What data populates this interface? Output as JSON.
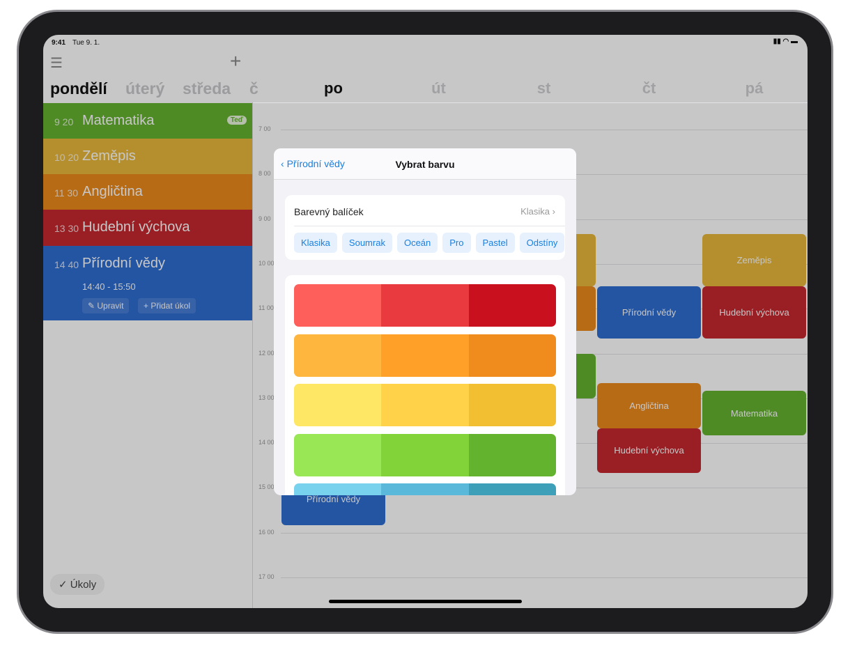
{
  "status": {
    "time": "9:41",
    "date": "Tue 9. 1."
  },
  "sidebar": {
    "days": [
      "pondělí",
      "úterý",
      "středa",
      "č"
    ],
    "lessons": [
      {
        "time": "9 20",
        "name": "Matematika",
        "color": "#64b32f",
        "badge": "Teď"
      },
      {
        "time": "10 20",
        "name": "Zeměpis",
        "color": "#e8b83a"
      },
      {
        "time": "11 30",
        "name": "Angličtina",
        "color": "#ec8a1c"
      },
      {
        "time": "13 30",
        "name": "Hudební výchova",
        "color": "#c4282f"
      },
      {
        "time": "14 40",
        "name": "Přírodní vědy",
        "color": "#2f6dd1",
        "range": "14:40 - 15:50",
        "edit": "Upravit",
        "add_task": "Přidat úkol"
      }
    ],
    "tasks_button": "Úkoly"
  },
  "calendar": {
    "days": [
      "po",
      "út",
      "st",
      "čt",
      "pá"
    ],
    "hours": [
      "7 00",
      "8 00",
      "9 00",
      "10 00",
      "11 00",
      "12 00",
      "13 00",
      "14 00",
      "15 00",
      "16 00",
      "17 00"
    ],
    "events": [
      {
        "day": "po",
        "name": "Přírodní vědy",
        "start": "14:40",
        "end": "15:50",
        "color": "#2f6dd1"
      },
      {
        "day": "st",
        "name": "",
        "start": "9:20",
        "end": "10:30",
        "color": "#e8b83a"
      },
      {
        "day": "st",
        "name": "",
        "start": "10:30",
        "end": "11:30",
        "color": "#ec8a1c"
      },
      {
        "day": "st",
        "name": "",
        "start": "12:00",
        "end": "13:00",
        "color": "#64b32f"
      },
      {
        "day": "čt",
        "name": "Přírodní vědy",
        "start": "10:30",
        "end": "11:40",
        "color": "#2f6dd1"
      },
      {
        "day": "čt",
        "name": "Angličtina",
        "start": "12:40",
        "end": "13:40",
        "color": "#ec8a1c"
      },
      {
        "day": "čt",
        "name": "Hudební výchova",
        "start": "13:40",
        "end": "14:40",
        "color": "#c4282f"
      },
      {
        "day": "pá",
        "name": "Zeměpis",
        "start": "9:20",
        "end": "10:30",
        "color": "#e8b83a"
      },
      {
        "day": "pá",
        "name": "Hudební výchova",
        "start": "10:30",
        "end": "11:40",
        "color": "#c4282f"
      },
      {
        "day": "pá",
        "name": "Matematika",
        "start": "12:50",
        "end": "13:50",
        "color": "#64b32f"
      }
    ]
  },
  "modal": {
    "back": "Přírodní vědy",
    "title": "Vybrat barvu",
    "package_label": "Barevný balíček",
    "package_value": "Klasika",
    "packages": [
      "Klasika",
      "Soumrak",
      "Oceán",
      "Pro",
      "Pastel",
      "Odstíny"
    ],
    "swatches": [
      [
        "#ff5f5a",
        "#e83a3f",
        "#c8101f"
      ],
      [
        "#ffb63f",
        "#ffa028",
        "#f08c1e"
      ],
      [
        "#ffe766",
        "#ffd24a",
        "#f2be32"
      ],
      [
        "#9ae756",
        "#82d23a",
        "#64b32f"
      ],
      [
        "#78d2ee",
        "#5ab8da",
        "#3ea0b8"
      ]
    ]
  }
}
